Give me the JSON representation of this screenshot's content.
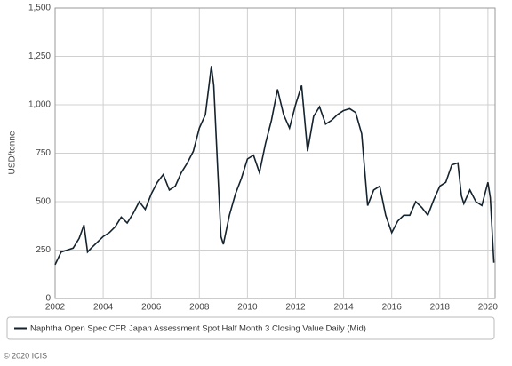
{
  "chart_data": {
    "type": "line",
    "y_label": "USD/tonne",
    "x": [
      2002.0,
      2002.25,
      2002.5,
      2002.75,
      2003.0,
      2003.2,
      2003.35,
      2003.5,
      2003.75,
      2004.0,
      2004.25,
      2004.5,
      2004.75,
      2005.0,
      2005.25,
      2005.5,
      2005.75,
      2006.0,
      2006.25,
      2006.5,
      2006.75,
      2007.0,
      2007.25,
      2007.5,
      2007.75,
      2008.0,
      2008.25,
      2008.5,
      2008.6,
      2008.75,
      2008.9,
      2009.0,
      2009.25,
      2009.5,
      2009.75,
      2010.0,
      2010.25,
      2010.5,
      2010.75,
      2011.0,
      2011.25,
      2011.5,
      2011.75,
      2012.0,
      2012.25,
      2012.5,
      2012.75,
      2013.0,
      2013.25,
      2013.5,
      2013.75,
      2014.0,
      2014.25,
      2014.5,
      2014.75,
      2015.0,
      2015.25,
      2015.5,
      2015.75,
      2016.0,
      2016.25,
      2016.5,
      2016.75,
      2017.0,
      2017.25,
      2017.5,
      2017.75,
      2018.0,
      2018.25,
      2018.5,
      2018.75,
      2018.9,
      2019.0,
      2019.25,
      2019.5,
      2019.75,
      2020.0,
      2020.1,
      2020.25
    ],
    "series": [
      {
        "name": "Naphtha Open Spec CFR Japan Assessment Spot Half Month 3 Closing Value Daily (Mid)",
        "color": "#14232e",
        "values": [
          175,
          240,
          250,
          260,
          310,
          380,
          240,
          260,
          290,
          320,
          340,
          370,
          420,
          390,
          440,
          500,
          460,
          540,
          600,
          640,
          560,
          580,
          650,
          700,
          760,
          880,
          950,
          1200,
          1100,
          700,
          320,
          280,
          430,
          540,
          620,
          720,
          740,
          650,
          800,
          920,
          1080,
          950,
          880,
          1000,
          1100,
          760,
          940,
          990,
          900,
          920,
          950,
          970,
          980,
          960,
          850,
          480,
          560,
          580,
          430,
          340,
          400,
          430,
          430,
          500,
          470,
          430,
          510,
          580,
          600,
          690,
          700,
          530,
          490,
          560,
          500,
          480,
          600,
          520,
          185
        ]
      }
    ],
    "xlim": [
      2002,
      2020.3
    ],
    "xticks": [
      2002,
      2004,
      2006,
      2008,
      2010,
      2012,
      2014,
      2016,
      2018,
      2020
    ],
    "ylim": [
      0,
      1500
    ],
    "yticks": [
      0,
      250,
      500,
      750,
      {
        "value": 1000,
        "label": "1,000"
      },
      {
        "value": 1250,
        "label": "1,250"
      },
      {
        "value": 1500,
        "label": "1,500"
      }
    ],
    "grid": true,
    "footer": "© 2020 ICIS"
  }
}
